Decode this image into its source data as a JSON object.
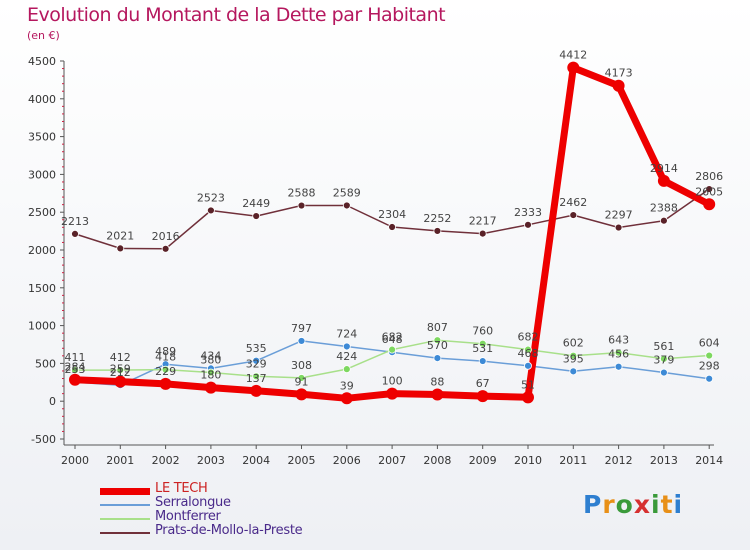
{
  "chart_data": {
    "type": "line",
    "title": "Evolution du Montant de la Dette par Habitant",
    "subtitle": "(en €)",
    "x": [
      "2000",
      "2001",
      "2002",
      "2003",
      "2004",
      "2005",
      "2006",
      "2007",
      "2008",
      "2009",
      "2010",
      "2011",
      "2012",
      "2013",
      "2014"
    ],
    "ylim": [
      -500,
      4500
    ],
    "yticks": [
      -500,
      0,
      500,
      1000,
      1500,
      2000,
      2500,
      3000,
      3500,
      4000,
      4500
    ],
    "grid": false,
    "legend_position": "bottom-left",
    "series": [
      {
        "name": "Serralongue",
        "color": "#6a9ed8",
        "marker": "#3d8ad6",
        "width": 1.5,
        "values": [
          253,
          212,
          489,
          434,
          535,
          797,
          724,
          648,
          570,
          531,
          468,
          395,
          456,
          379,
          298
        ]
      },
      {
        "name": "Montferrer",
        "color": "#a8e08a",
        "marker": "#7dd860",
        "width": 1.5,
        "values": [
          411,
          412,
          418,
          380,
          329,
          308,
          424,
          682,
          807,
          760,
          682,
          602,
          643,
          561,
          604
        ]
      },
      {
        "name": "Prats-de-Mollo-la-Preste",
        "color": "#70303a",
        "marker": "#5a2228",
        "width": 1.5,
        "values": [
          2213,
          2021,
          2016,
          2523,
          2449,
          2588,
          2589,
          2304,
          2252,
          2217,
          2333,
          2462,
          2297,
          2388,
          2806
        ]
      },
      {
        "name": "LE TECH",
        "color": "#ee0000",
        "marker": "#ee0000",
        "width": 7,
        "values": [
          284,
          259,
          229,
          180,
          137,
          91,
          39,
          100,
          88,
          67,
          51,
          4412,
          4173,
          2914,
          2605
        ]
      }
    ]
  },
  "logo": {
    "letters": [
      "P",
      "r",
      "o",
      "x",
      "i",
      "t",
      "i"
    ],
    "colors": [
      "#2e7fd0",
      "#e89018",
      "#3a9a3a",
      "#d63030",
      "#3a9a3a",
      "#e89018",
      "#2e7fd0"
    ]
  }
}
